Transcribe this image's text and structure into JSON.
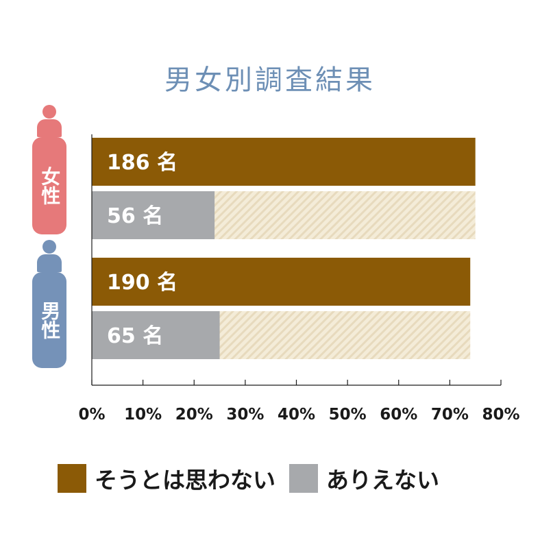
{
  "colors": {
    "title": "#6d8fb5",
    "disagree": "#8b5a06",
    "impossible": "#a7a9ac",
    "remainder": "#f4ecd8",
    "remainder_stripe": "#e7dabd",
    "female": "#e6797a",
    "male": "#7592b8",
    "axis": "#1a1a1a"
  },
  "chart_data": {
    "type": "bar",
    "orientation": "horizontal",
    "title": "男女別調査結果",
    "groups": [
      {
        "label": "女性",
        "icon": "female-person-icon",
        "total_pct": 75,
        "bars": [
          {
            "series": "そうとは思わない",
            "value_pct": 75,
            "label": "186 名"
          },
          {
            "series": "ありえない",
            "value_pct": 24,
            "label": "56 名"
          }
        ]
      },
      {
        "label": "男性",
        "icon": "male-person-icon",
        "total_pct": 74,
        "bars": [
          {
            "series": "そうとは思わない",
            "value_pct": 74,
            "label": "190 名"
          },
          {
            "series": "ありえない",
            "value_pct": 25,
            "label": "65 名"
          }
        ]
      }
    ],
    "x_ticks": [
      "0%",
      "10%",
      "20%",
      "30%",
      "40%",
      "50%",
      "60%",
      "70%",
      "80%"
    ],
    "xlim": [
      0,
      80
    ],
    "grid": false,
    "legend": {
      "position": "bottom",
      "entries": [
        {
          "label": "そうとは思わない",
          "color": "#8b5a06"
        },
        {
          "label": "ありえない",
          "color": "#a7a9ac"
        }
      ]
    }
  }
}
